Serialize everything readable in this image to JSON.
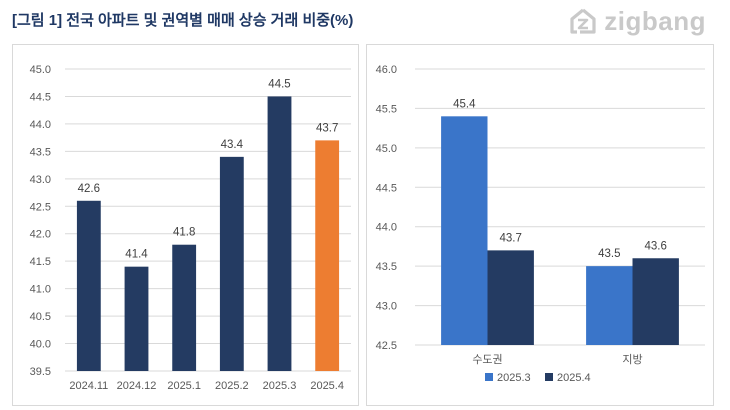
{
  "header": {
    "title": "[그림 1] 전국 아파트 및 권역별 매매 상승 거래 비중(%)",
    "logo_text": "zigbang"
  },
  "colors": {
    "navy": "#243b62",
    "orange": "#ed7d31",
    "blue": "#3a75c9",
    "grid": "#d9d9d9",
    "text": "#595959",
    "title": "#1f3864"
  },
  "chart_data": [
    {
      "type": "bar",
      "categories": [
        "2024.11",
        "2024.12",
        "2025.1",
        "2025.2",
        "2025.3",
        "2025.4"
      ],
      "values": [
        42.6,
        41.4,
        41.8,
        43.4,
        44.5,
        43.7
      ],
      "highlight_index": 5,
      "ylim": [
        39.5,
        45.0
      ],
      "yticks": [
        "39.5",
        "40.0",
        "40.5",
        "41.0",
        "41.5",
        "42.0",
        "42.5",
        "43.0",
        "43.5",
        "44.0",
        "44.5",
        "45.0"
      ],
      "grid": true
    },
    {
      "type": "bar",
      "categories": [
        "수도권",
        "지방"
      ],
      "series": [
        {
          "name": "2025.3",
          "values": [
            45.4,
            43.5
          ]
        },
        {
          "name": "2025.4",
          "values": [
            43.7,
            43.6
          ]
        }
      ],
      "ylim": [
        42.5,
        46.0
      ],
      "yticks": [
        "42.5",
        "43.0",
        "43.5",
        "44.0",
        "44.5",
        "45.0",
        "45.5",
        "46.0"
      ],
      "grid": true,
      "legend": "bottom"
    }
  ]
}
